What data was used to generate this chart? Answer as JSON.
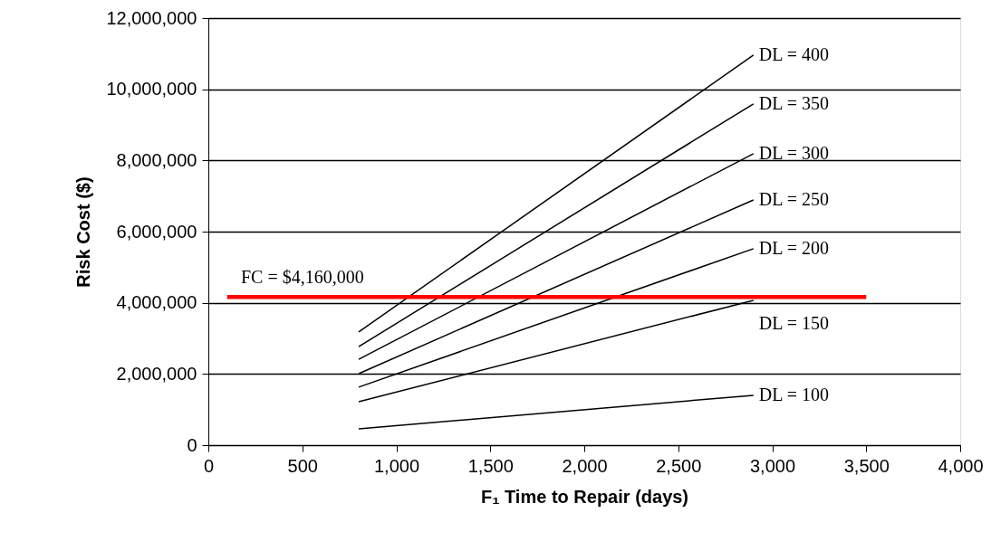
{
  "chart_data": {
    "type": "line",
    "xlabel": "F₁ Time to Repair (days)",
    "ylabel": "Risk Cost ($)",
    "x": [
      800,
      2900
    ],
    "series": [
      {
        "name": "DL = 400",
        "color": "#000000",
        "values": [
          3180000,
          10960000
        ]
      },
      {
        "name": "DL = 350",
        "color": "#000000",
        "values": [
          2770000,
          9590000
        ]
      },
      {
        "name": "DL = 300",
        "color": "#000000",
        "values": [
          2410000,
          8190000
        ]
      },
      {
        "name": "DL = 250",
        "color": "#000000",
        "values": [
          2010000,
          6890000
        ]
      },
      {
        "name": "DL = 200",
        "color": "#000000",
        "values": [
          1630000,
          5520000
        ]
      },
      {
        "name": "DL = 150",
        "color": "#000000",
        "values": [
          1220000,
          4070000
        ]
      },
      {
        "name": "DL = 100",
        "color": "#000000",
        "values": [
          460000,
          1400000
        ]
      },
      {
        "color": "#ff0000",
        "x": [
          100,
          3500
        ],
        "values": [
          4160000,
          4160000
        ]
      }
    ],
    "annotations": [
      "FC = $4,160,000"
    ],
    "xlim": [
      0,
      4000
    ],
    "xticks": [
      0,
      500,
      {
        "value": 1000,
        "label": "1,000"
      },
      {
        "value": 1500,
        "label": "1,500"
      },
      {
        "value": 2000,
        "label": "2,000"
      },
      {
        "value": 2500,
        "label": "2,500"
      },
      {
        "value": 3000,
        "label": "3,000"
      },
      {
        "value": 3500,
        "label": "3,500"
      },
      {
        "value": 4000,
        "label": "4,000"
      }
    ],
    "ylim": [
      0,
      12000000
    ],
    "yticks": [
      0,
      {
        "value": 2000000,
        "label": "2,000,000"
      },
      {
        "value": 4000000,
        "label": "4,000,000"
      },
      {
        "value": 6000000,
        "label": "6,000,000"
      },
      {
        "value": 8000000,
        "label": "8,000,000"
      },
      {
        "value": 10000000,
        "label": "10,000,000"
      },
      {
        "value": 12000000,
        "label": "12,000,000"
      }
    ],
    "grid": "y",
    "marker": "none",
    "line_style": "solid"
  }
}
